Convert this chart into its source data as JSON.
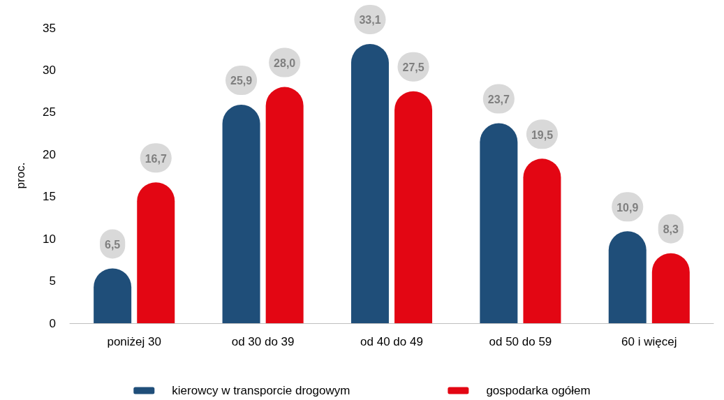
{
  "chart_data": {
    "type": "bar",
    "ylabel": "proc.",
    "categories": [
      "poniżej 30",
      "od 30 do 39",
      "od 40 do 49",
      "od 50 do 59",
      "60 i więcej"
    ],
    "series": [
      {
        "name": "kierowcy w transporcie drogowym",
        "color": "#1f4e79",
        "values": [
          6.5,
          25.9,
          33.1,
          23.7,
          10.9
        ],
        "value_labels": [
          "6,5",
          "25,9",
          "33,1",
          "23,7",
          "10,9"
        ]
      },
      {
        "name": "gospodarka ogółem",
        "color": "#e30613",
        "values": [
          16.7,
          28.0,
          27.5,
          19.5,
          8.3
        ],
        "value_labels": [
          "16,7",
          "28,0",
          "27,5",
          "19,5",
          "8,3"
        ]
      }
    ],
    "ylim": [
      0,
      35
    ],
    "yticks": [
      0,
      5,
      10,
      15,
      20,
      25,
      30,
      35
    ],
    "grid": false,
    "legend": "bottom"
  }
}
